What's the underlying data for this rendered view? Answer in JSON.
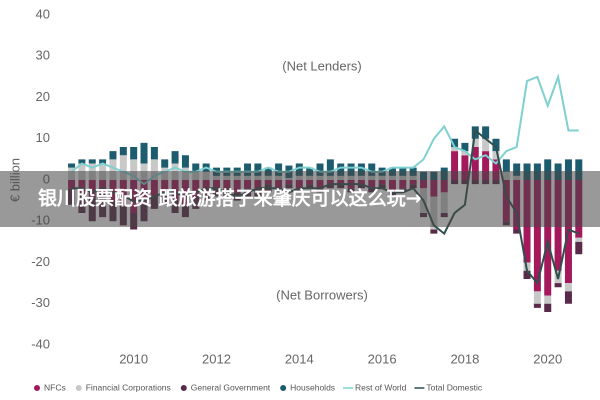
{
  "chart_data": {
    "type": "stacked-bar-line",
    "y_label": "€ billion",
    "annotations": [
      "(Net Lenders)",
      "(Net Borrowers)"
    ],
    "banner": "银川股票配资 跟旅游搭子来肇庆可以这么玩→",
    "xlim": [
      2008.1,
      2020.9
    ],
    "xticks": [
      2010,
      2012,
      2014,
      2016,
      2018,
      2020
    ],
    "ylim": [
      -40,
      40
    ],
    "yticks": [
      -40,
      -30,
      -20,
      -10,
      0,
      10,
      20,
      30,
      40
    ],
    "x": [
      2008.5,
      2008.75,
      2009,
      2009.25,
      2009.5,
      2009.75,
      2010,
      2010.25,
      2010.5,
      2010.75,
      2011,
      2011.25,
      2011.5,
      2011.75,
      2012,
      2012.25,
      2012.5,
      2012.75,
      2013,
      2013.25,
      2013.5,
      2013.75,
      2014,
      2014.25,
      2014.5,
      2014.75,
      2015,
      2015.25,
      2015.5,
      2015.75,
      2016,
      2016.25,
      2016.5,
      2016.75,
      2017,
      2017.25,
      2017.5,
      2017.75,
      2018,
      2018.25,
      2018.5,
      2018.75,
      2019,
      2019.25,
      2019.5,
      2019.75,
      2020,
      2020.25,
      2020.5,
      2020.75
    ],
    "series": [
      {
        "name": "NFCs",
        "color": "#a3195b",
        "kind": "bar",
        "values": [
          -2,
          -3,
          -4,
          -3,
          -5,
          -6,
          -8,
          -6,
          -4,
          -3,
          -5,
          -6,
          -4,
          -3,
          -2,
          -2,
          -3,
          -2,
          -2,
          -1,
          -2,
          -1,
          -2,
          -1,
          -2,
          -1,
          -1,
          -2,
          -1,
          -2,
          -1,
          -3,
          -2,
          -1,
          -2,
          -4,
          -3,
          7,
          6,
          8,
          7,
          5,
          -10,
          -12,
          -20,
          -27,
          -28,
          -22,
          -25,
          -14
        ]
      },
      {
        "name": "Financial Corporations",
        "color": "#c8c8c8",
        "kind": "bar",
        "values": [
          3,
          4,
          4,
          4,
          5,
          6,
          5,
          4,
          5,
          3,
          4,
          3,
          2,
          2,
          1,
          1,
          1,
          1,
          1,
          1,
          1,
          0.5,
          1,
          1,
          1,
          1,
          1,
          1,
          1,
          1,
          1,
          1,
          1,
          1,
          -6,
          -8,
          -5,
          1,
          1,
          2,
          3,
          2,
          2,
          1,
          -2,
          -3,
          -2,
          -3,
          -2,
          -1
        ]
      },
      {
        "name": "General Government",
        "color": "#5a2a4a",
        "kind": "bar",
        "values": [
          -4,
          -5,
          -6,
          -6,
          -5,
          -5,
          -4,
          -4,
          -3,
          -3,
          -3,
          -3,
          -3,
          -2,
          -2,
          -2,
          -2,
          -2,
          -2,
          -2,
          -1,
          -1,
          -1,
          -1,
          -1,
          -1,
          -1,
          -1,
          -1,
          -1,
          -1,
          -1,
          -1,
          -1,
          -1,
          -1,
          -1,
          -1,
          -1,
          -1,
          -1,
          -1,
          -1,
          -1,
          -2,
          -1,
          -2,
          -1,
          -3,
          -3
        ]
      },
      {
        "name": "Households",
        "color": "#1d5b6e",
        "kind": "bar",
        "values": [
          1,
          1,
          1,
          1,
          2,
          2,
          3,
          5,
          3,
          2,
          3,
          3,
          2,
          2,
          2,
          2,
          2,
          3,
          3,
          2,
          3,
          3,
          3,
          2,
          3,
          4,
          3,
          3,
          3,
          3,
          2,
          2,
          2,
          2,
          2,
          2,
          3,
          2,
          2,
          3,
          3,
          3,
          3,
          3,
          4,
          4,
          5,
          4,
          5,
          5
        ]
      },
      {
        "name": "Rest of World",
        "color": "#7fd0d0",
        "kind": "line",
        "values": [
          2,
          4,
          3,
          4,
          3,
          2,
          1,
          -1,
          1,
          2,
          3,
          2,
          2,
          3,
          2,
          2,
          2,
          2,
          2,
          3,
          2,
          2,
          3,
          3,
          2,
          2,
          3,
          3,
          3,
          2,
          2,
          3,
          3,
          3,
          5,
          10,
          13,
          8,
          7,
          5,
          6,
          4,
          7,
          8,
          24,
          25,
          18,
          25,
          12,
          12
        ]
      },
      {
        "name": "Total Domestic",
        "color": "#2f4f4f",
        "kind": "line",
        "values": [
          -2,
          -2,
          -3,
          -2,
          -3,
          -4,
          -5,
          -5,
          -4,
          -3,
          -3,
          -4,
          -3,
          -2,
          -2,
          -3,
          -4,
          -3,
          -2,
          -2,
          -2,
          -3,
          -2,
          -2,
          -2,
          -1,
          -1,
          -1,
          -1,
          -2,
          -2,
          -3,
          -3,
          -2,
          -5,
          -11,
          -13,
          -8,
          -6,
          12,
          10,
          8,
          -4,
          -8,
          -22,
          -25,
          -15,
          -24,
          -12,
          -13
        ]
      }
    ]
  }
}
